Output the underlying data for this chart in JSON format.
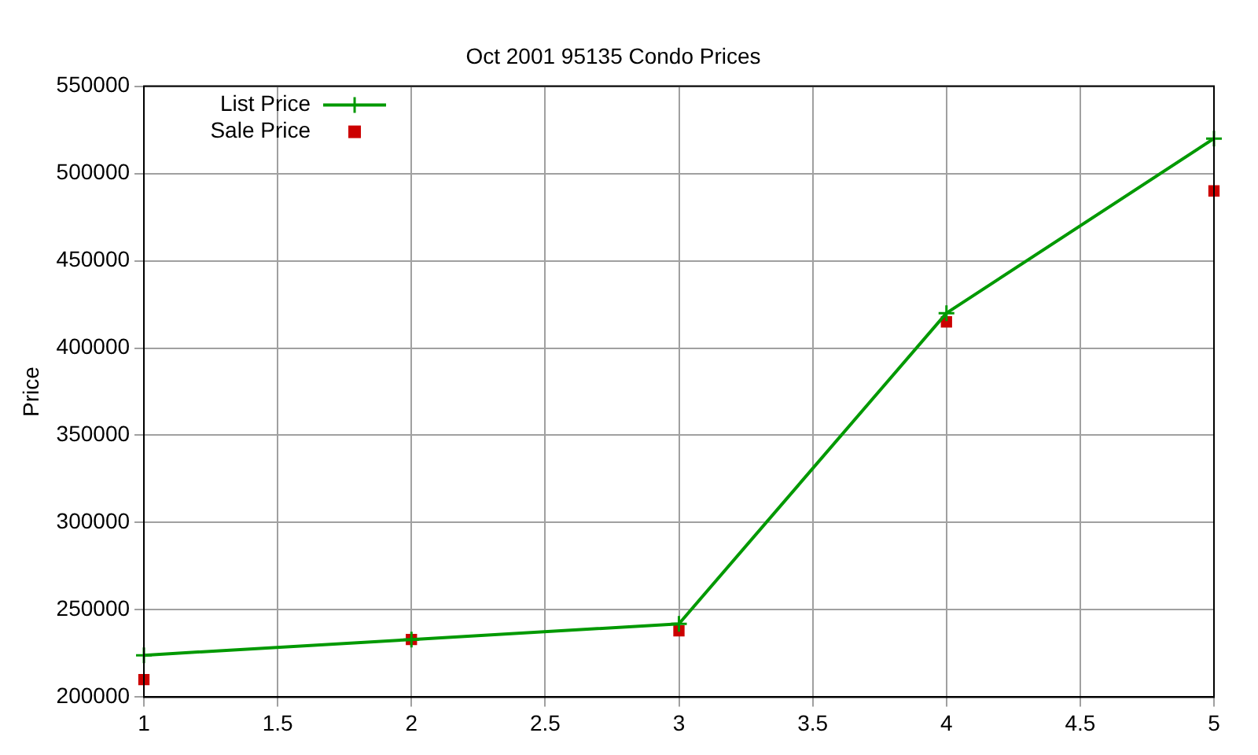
{
  "chart_data": {
    "type": "line",
    "title": "Oct 2001 95135 Condo Prices",
    "ylabel": "Price",
    "x": [
      1,
      2,
      3,
      4,
      5
    ],
    "series": [
      {
        "name": "List Price",
        "type": "line",
        "color": "#009900",
        "marker": "cross",
        "values": [
          224000,
          233000,
          242000,
          420000,
          520000
        ]
      },
      {
        "name": "Sale Price",
        "type": "scatter",
        "color": "#cc0000",
        "marker": "square",
        "values": [
          210000,
          233000,
          238000,
          415000,
          490000
        ]
      }
    ],
    "xlim": [
      1,
      5
    ],
    "xticks": [
      1,
      1.5,
      2,
      2.5,
      3,
      3.5,
      4,
      4.5,
      5
    ],
    "ylim": [
      200000,
      550000
    ],
    "yticks": [
      200000,
      250000,
      300000,
      350000,
      400000,
      450000,
      500000,
      550000
    ],
    "grid": true,
    "legend": "top left"
  }
}
